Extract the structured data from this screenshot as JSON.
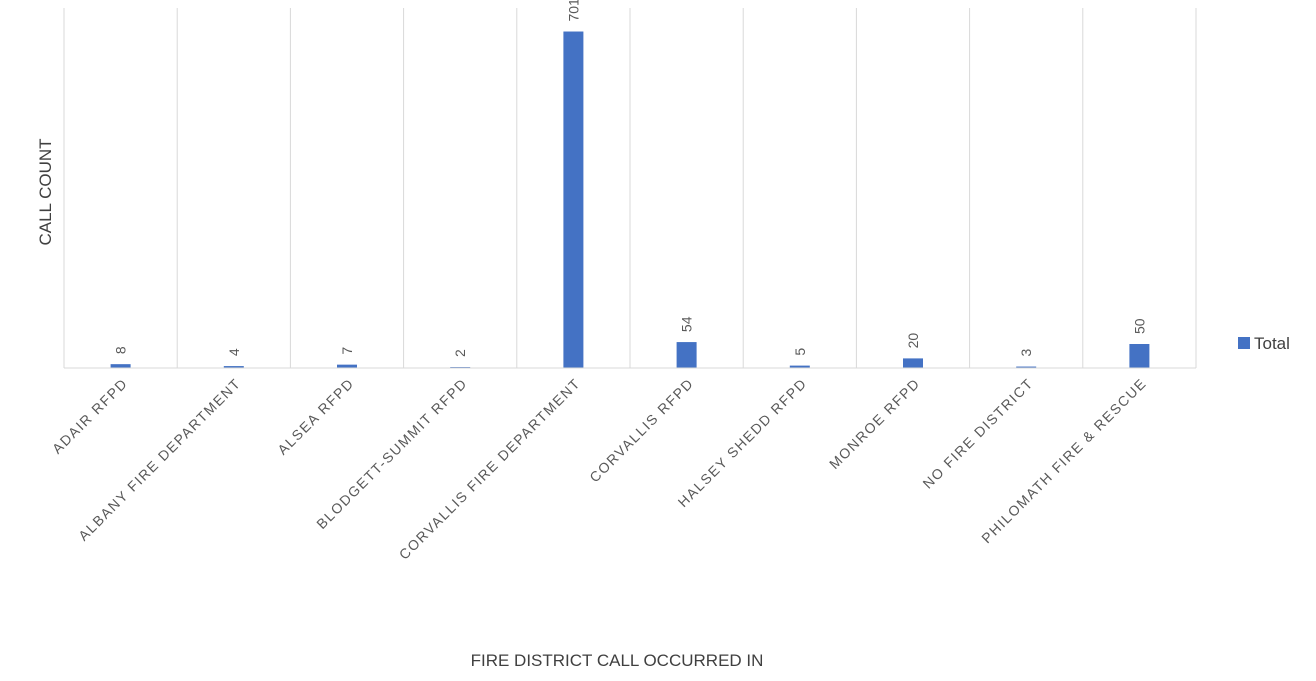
{
  "chart_data": {
    "type": "bar",
    "categories": [
      "ADAIR RFPD",
      "ALBANY FIRE DEPARTMENT",
      "ALSEA RFPD",
      "BLODGETT-SUMMIT RFPD",
      "CORVALLIS FIRE DEPARTMENT",
      "CORVALLIS RFPD",
      "HALSEY SHEDD RFPD",
      "MONROE RFPD",
      "NO FIRE DISTRICT",
      "PHILOMATH FIRE & RESCUE"
    ],
    "series": [
      {
        "name": "Total",
        "values": [
          8,
          4,
          7,
          2,
          701,
          54,
          5,
          20,
          3,
          50
        ],
        "color": "#4472C4"
      }
    ],
    "title": "",
    "xlabel": "FIRE DISTRICT CALL OCCURRED IN",
    "ylabel": "CALL COUNT",
    "ylim": [
      0,
      750
    ],
    "grid": "vertical",
    "legend": "right"
  }
}
